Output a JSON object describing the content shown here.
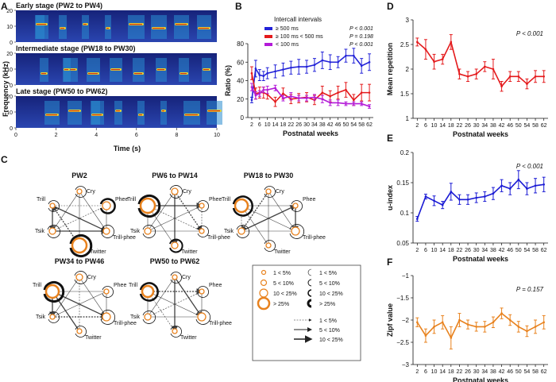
{
  "panel_letters": {
    "A": "A",
    "B": "B",
    "C": "C",
    "D": "D",
    "E": "E",
    "F": "F"
  },
  "panel_a": {
    "rows": [
      {
        "title": "Early stage (PW2 to PW4)"
      },
      {
        "title": "Intermediate stage (PW18 to PW30)"
      },
      {
        "title": "Late stage (PW50 to PW62)"
      }
    ],
    "ylabel": "Frequency (kHz)",
    "yticks": [
      "20",
      "10",
      "0"
    ],
    "xticks": [
      "0",
      "2",
      "4",
      "6",
      "8",
      "10"
    ],
    "xlabel": "Time (s)",
    "colors": {
      "bg": "#1b2a8c",
      "mid": "#2a8ccf",
      "hot": "#e8d431",
      "peak": "#c8321c"
    }
  },
  "panel_c": {
    "node_labels": {
      "cry": "Cry",
      "phee": "Phee",
      "trill": "Trill",
      "tsik": "Tsik",
      "trillphee": "Trill-phee",
      "twitter": "Twitter"
    },
    "diagrams": [
      {
        "title": "PW2"
      },
      {
        "title": "PW6 to PW14"
      },
      {
        "title": "PW18 to PW30"
      },
      {
        "title": "PW34 to PW46"
      },
      {
        "title": "PW50 to PW62"
      }
    ],
    "legend": {
      "node_items": [
        "1 < 5%",
        "5 < 10%",
        "10 < 25%",
        "> 25%"
      ],
      "loop_items": [
        "1 < 5%",
        "5 < 10%",
        "10 < 25%",
        "> 25%"
      ],
      "arrow_items": [
        "1 < 5%",
        "5 < 10%",
        "10 < 25%"
      ]
    },
    "node_color": "#e8821e"
  },
  "chart_data": [
    {
      "type": "line",
      "panel": "B",
      "legend_title": "Intercall intervals",
      "x": [
        2,
        4,
        6,
        8,
        10,
        14,
        18,
        22,
        26,
        30,
        34,
        38,
        42,
        46,
        50,
        54,
        58,
        62
      ],
      "xticklabels": [
        "2",
        "6",
        "10",
        "14",
        "18",
        "22",
        "26",
        "30",
        "34",
        "38",
        "42",
        "46",
        "50",
        "54",
        "58",
        "62"
      ],
      "series": [
        {
          "name": "≥ 500 ms",
          "color": "#2323d8",
          "p": "P < 0.001",
          "values": [
            19,
            53,
            46,
            45,
            48,
            50,
            52,
            54,
            55,
            55,
            57,
            62,
            60,
            60,
            67,
            67,
            56,
            60
          ],
          "err": [
            3,
            9,
            6,
            5,
            6,
            7,
            7,
            7,
            8,
            7,
            7,
            9,
            8,
            6,
            7,
            8,
            8,
            9
          ]
        },
        {
          "name": "≥ 100 ms < 500 ms",
          "color": "#e41a1c",
          "p": "P = 0.198",
          "values": [
            48,
            26,
            27,
            27,
            25,
            17,
            26,
            20,
            21,
            22,
            19,
            27,
            23,
            27,
            30,
            19,
            27,
            27
          ],
          "err": [
            7,
            6,
            6,
            6,
            5,
            5,
            6,
            5,
            5,
            5,
            5,
            7,
            6,
            7,
            8,
            6,
            9,
            9
          ]
        },
        {
          "name": "< 100 ms",
          "color": "#b31ad8",
          "p": "P < 0.001",
          "values": [
            33,
            24,
            26,
            30,
            30,
            32,
            21,
            23,
            21,
            21,
            22,
            20,
            16,
            16,
            15,
            15,
            15,
            12
          ],
          "err": [
            4,
            4,
            3,
            3,
            4,
            3,
            3,
            4,
            3,
            3,
            3,
            4,
            3,
            3,
            2,
            2,
            2,
            2
          ]
        }
      ],
      "ylabel": "Ratio (%)",
      "xlabel": "Postnatal weeks",
      "ylim": [
        0,
        80
      ],
      "yticks": [
        0,
        20,
        40,
        60,
        80
      ]
    },
    {
      "type": "line",
      "panel": "D",
      "color": "#e41a1c",
      "p": "P < 0.001",
      "x": [
        2,
        6,
        10,
        14,
        18,
        22,
        26,
        30,
        34,
        38,
        42,
        46,
        50,
        54,
        58,
        62
      ],
      "xticklabels": [
        "2",
        "6",
        "10",
        "14",
        "18",
        "22",
        "26",
        "30",
        "34",
        "38",
        "42",
        "46",
        "50",
        "54",
        "58",
        "62"
      ],
      "values": [
        2.55,
        2.4,
        2.15,
        2.2,
        2.55,
        1.9,
        1.85,
        1.9,
        2.05,
        2.0,
        1.65,
        1.85,
        1.85,
        1.7,
        1.85,
        1.85
      ],
      "err": [
        0.08,
        0.2,
        0.15,
        0.1,
        0.15,
        0.1,
        0.1,
        0.1,
        0.1,
        0.2,
        0.1,
        0.1,
        0.1,
        0.1,
        0.12,
        0.12
      ],
      "ylabel": "Mean repetition",
      "xlabel": "Postnatal weeks",
      "ylim": [
        1,
        3
      ],
      "yticks": [
        1,
        1.5,
        2,
        2.5,
        3
      ],
      "yticklabels": [
        "1",
        "1.5",
        "2",
        "2.5",
        "3"
      ]
    },
    {
      "type": "line",
      "panel": "E",
      "color": "#1a1ad4",
      "p": "P < 0.001",
      "x": [
        2,
        6,
        10,
        14,
        18,
        22,
        26,
        30,
        34,
        38,
        42,
        46,
        50,
        54,
        58,
        62
      ],
      "xticklabels": [
        "2",
        "6",
        "10",
        "14",
        "18",
        "22",
        "26",
        "30",
        "34",
        "38",
        "42",
        "46",
        "50",
        "54",
        "58",
        "62"
      ],
      "values": [
        0.09,
        0.127,
        0.12,
        0.113,
        0.135,
        0.122,
        0.122,
        0.125,
        0.127,
        0.132,
        0.145,
        0.14,
        0.155,
        0.14,
        0.145,
        0.147
      ],
      "err": [
        0.004,
        0.004,
        0.008,
        0.006,
        0.014,
        0.008,
        0.008,
        0.008,
        0.008,
        0.01,
        0.01,
        0.01,
        0.015,
        0.01,
        0.012,
        0.012
      ],
      "ylabel": "u-index",
      "xlabel": "Postnatal weeks",
      "ylim": [
        0.05,
        0.2
      ],
      "yticks": [
        0.05,
        0.1,
        0.15,
        0.2
      ],
      "yticklabels": [
        "0.05",
        "0.1",
        "0.15",
        "0.2"
      ]
    },
    {
      "type": "line",
      "panel": "F",
      "color": "#e8821e",
      "p": "P = 0.157",
      "x": [
        2,
        6,
        10,
        14,
        18,
        22,
        26,
        30,
        34,
        38,
        42,
        46,
        50,
        54,
        58,
        62
      ],
      "xticklabels": [
        "2",
        "6",
        "10",
        "14",
        "18",
        "22",
        "26",
        "30",
        "34",
        "38",
        "42",
        "46",
        "50",
        "54",
        "58",
        "62"
      ],
      "values": [
        -2.05,
        -2.35,
        -2.15,
        -2.05,
        -2.4,
        -2.0,
        -2.1,
        -2.15,
        -2.15,
        -2.05,
        -1.85,
        -2.0,
        -2.15,
        -2.25,
        -2.15,
        -2.05
      ],
      "err": [
        0.1,
        0.15,
        0.15,
        0.15,
        0.25,
        0.15,
        0.1,
        0.1,
        0.12,
        0.12,
        0.12,
        0.12,
        0.12,
        0.12,
        0.15,
        0.15
      ],
      "ylabel": "Zipf value",
      "xlabel": "Postnatal weeks",
      "ylim": [
        -3,
        -1
      ],
      "yticks": [
        -3,
        -2.5,
        -2,
        -1.5,
        -1
      ],
      "yticklabels": [
        "−3",
        "−2.5",
        "−2",
        "−1.5",
        "−1"
      ]
    }
  ]
}
